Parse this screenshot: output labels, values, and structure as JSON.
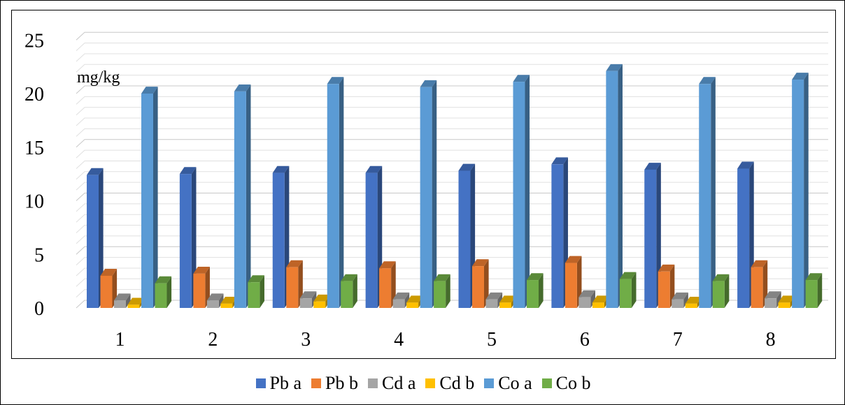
{
  "chart_data": {
    "type": "bar",
    "unit_label": "mg/kg",
    "categories": [
      "1",
      "2",
      "3",
      "4",
      "5",
      "6",
      "7",
      "8"
    ],
    "ylim": [
      0,
      25
    ],
    "yticks": [
      "0",
      "5",
      "10",
      "15",
      "20",
      "25"
    ],
    "grid": true,
    "legend_position": "bottom",
    "series": [
      {
        "name": "Pb a",
        "color": "#4472C4",
        "values": [
          12.4,
          12.5,
          12.6,
          12.6,
          12.8,
          13.4,
          12.9,
          13.0
        ]
      },
      {
        "name": "Pb b",
        "color": "#ED7D31",
        "values": [
          3.0,
          3.2,
          3.8,
          3.7,
          3.9,
          4.2,
          3.4,
          3.8
        ]
      },
      {
        "name": "Cd a",
        "color": "#A5A5A5",
        "values": [
          0.7,
          0.7,
          0.9,
          0.8,
          0.8,
          1.0,
          0.8,
          0.9
        ]
      },
      {
        "name": "Cd b",
        "color": "#FFC000",
        "values": [
          0.3,
          0.4,
          0.6,
          0.5,
          0.5,
          0.5,
          0.4,
          0.5
        ]
      },
      {
        "name": "Co a",
        "color": "#5B9BD5",
        "values": [
          20.0,
          20.2,
          20.9,
          20.6,
          21.1,
          22.1,
          20.9,
          21.3
        ]
      },
      {
        "name": "Co b",
        "color": "#70AD47",
        "values": [
          2.3,
          2.4,
          2.5,
          2.5,
          2.6,
          2.7,
          2.5,
          2.6
        ]
      }
    ]
  }
}
